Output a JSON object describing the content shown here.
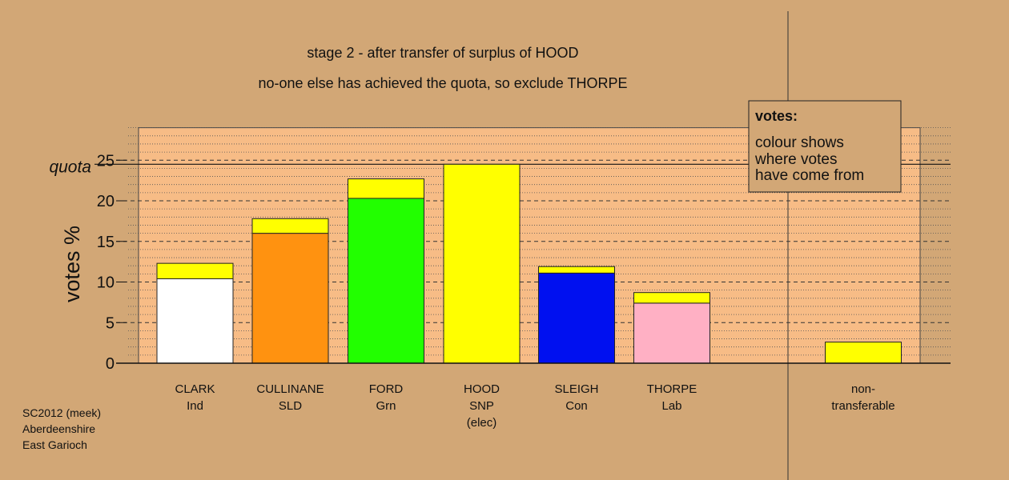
{
  "colors": {
    "background": "#D2A776",
    "plot_fill": "#F7BC86",
    "transfer": "#FFFF00",
    "legend_fill": "#D2A776"
  },
  "chart_data": {
    "type": "bar",
    "title_lines": [
      "stage 2 - after transfer of surplus of HOOD",
      "no-one else has achieved the quota, so exclude THORPE"
    ],
    "ylabel": "votes %",
    "ylim": [
      0,
      29
    ],
    "yticks": [
      0,
      5,
      10,
      15,
      20,
      25
    ],
    "quota": {
      "label": "quota",
      "value": 24.5
    },
    "candidates": [
      {
        "name": "CLARK",
        "party": "Ind",
        "status": "",
        "color": "#FFFFFF",
        "base": 10.4,
        "transfer": 1.9
      },
      {
        "name": "CULLINANE",
        "party": "SLD",
        "status": "",
        "color": "#FF9210",
        "base": 16.0,
        "transfer": 1.8
      },
      {
        "name": "FORD",
        "party": "Grn",
        "status": "",
        "color": "#22FF00",
        "base": 20.3,
        "transfer": 2.4
      },
      {
        "name": "HOOD",
        "party": "SNP",
        "status": "(elec)",
        "color": "#FFFF00",
        "base": 24.5,
        "transfer": 0
      },
      {
        "name": "SLEIGH",
        "party": "Con",
        "status": "",
        "color": "#0010F0",
        "base": 11.1,
        "transfer": 0.8
      },
      {
        "name": "THORPE",
        "party": "Lab",
        "status": "",
        "color": "#FFB0C4",
        "base": 7.4,
        "transfer": 1.3
      }
    ],
    "non_transferable": {
      "line1": "non-",
      "line2": "transferable",
      "value": 2.6
    },
    "legend": {
      "title": "votes:",
      "lines": [
        "colour shows",
        "where votes",
        "have come from"
      ]
    },
    "footnote": [
      "SC2012 (meek)",
      "Aberdeenshire",
      "East Garioch"
    ]
  }
}
